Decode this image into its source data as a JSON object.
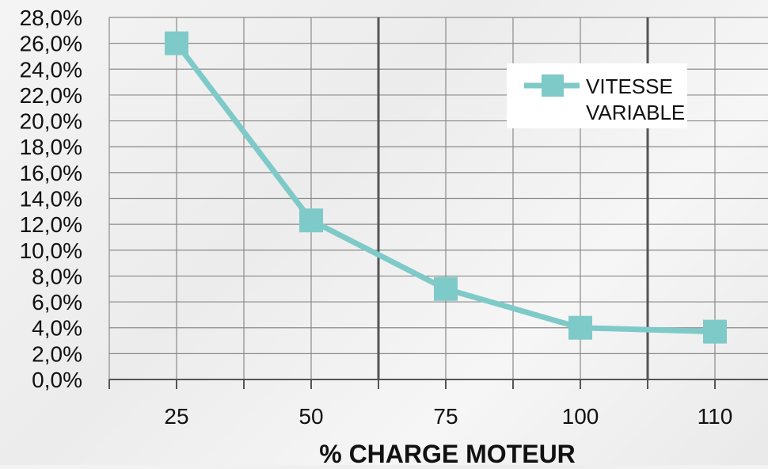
{
  "chart_data": {
    "type": "line",
    "title": "",
    "xlabel": "% CHARGE MOTEUR",
    "ylabel": "",
    "categories": [
      "25",
      "50",
      "75",
      "100",
      "110"
    ],
    "series": [
      {
        "name": "VITESSE VARIABLE",
        "values": [
          26.0,
          12.3,
          7.0,
          4.0,
          3.7
        ],
        "color": "#7ecac8"
      }
    ],
    "ylim": [
      0,
      28
    ],
    "yticks": [
      "0,0%",
      "2,0%",
      "4,0%",
      "6,0%",
      "8,0%",
      "10,0%",
      "12,0%",
      "14,0%",
      "16,0%",
      "18,0%",
      "20,0%",
      "22,0%",
      "24,0%",
      "26,0%",
      "28,0%"
    ],
    "grid": true,
    "legend_position": "top-right",
    "legend_lines": [
      "VITESSE",
      "VARIABLE"
    ]
  }
}
